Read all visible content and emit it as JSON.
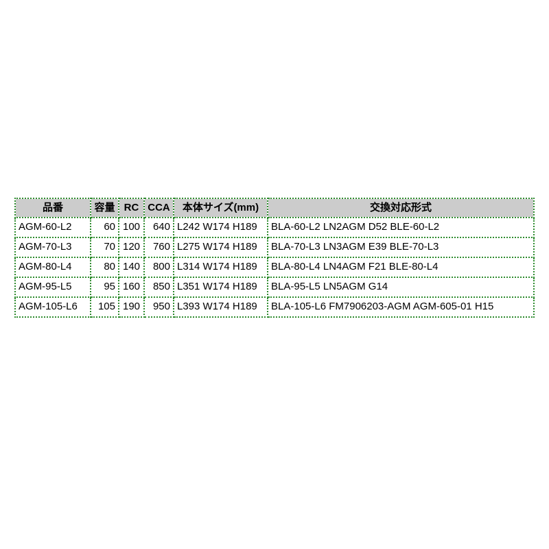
{
  "page": {
    "background_color": "#ffffff"
  },
  "table": {
    "border_color": "#2e8b2e",
    "header_background_color": "#cccccc",
    "text_color": "#000000",
    "headers": {
      "part_number": "品番",
      "capacity": "容量",
      "rc": "RC",
      "cca": "CCA",
      "body_size": "本体サイズ(mm)",
      "compatible_models": "交換対応形式"
    },
    "rows": [
      {
        "part_number": "AGM-60-L2",
        "capacity": "60",
        "rc": "100",
        "cca": "640",
        "body_size": "L242 W174 H189",
        "compatible_models": "BLA-60-L2 LN2AGM D52 BLE-60-L2"
      },
      {
        "part_number": "AGM-70-L3",
        "capacity": "70",
        "rc": "120",
        "cca": "760",
        "body_size": "L275 W174 H189",
        "compatible_models": "BLA-70-L3 LN3AGM E39 BLE-70-L3"
      },
      {
        "part_number": "AGM-80-L4",
        "capacity": "80",
        "rc": "140",
        "cca": "800",
        "body_size": "L314 W174 H189",
        "compatible_models": "BLA-80-L4 LN4AGM F21 BLE-80-L4"
      },
      {
        "part_number": "AGM-95-L5",
        "capacity": "95",
        "rc": "160",
        "cca": "850",
        "body_size": "L351 W174 H189",
        "compatible_models": "BLA-95-L5 LN5AGM G14"
      },
      {
        "part_number": "AGM-105-L6",
        "capacity": "105",
        "rc": "190",
        "cca": "950",
        "body_size": "L393 W174 H189",
        "compatible_models": "BLA-105-L6 FM7906203-AGM AGM-605-01 H15"
      }
    ]
  }
}
